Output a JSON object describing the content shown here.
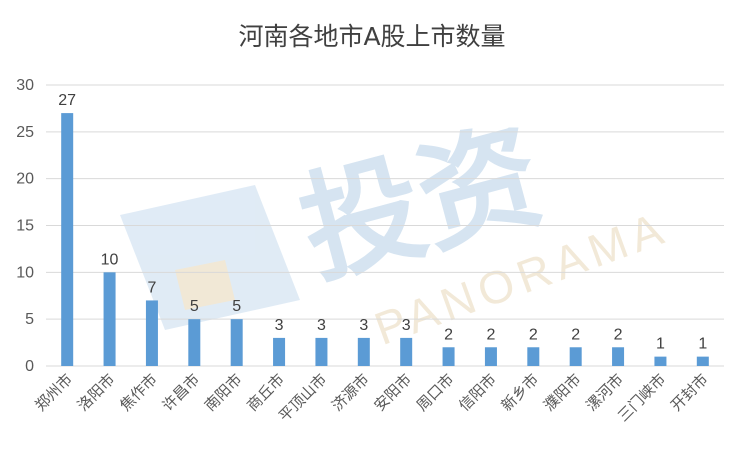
{
  "chart_data": {
    "type": "bar",
    "title": "河南各地市A股上市数量",
    "categories": [
      "郑州市",
      "洛阳市",
      "焦作市",
      "许昌市",
      "南阳市",
      "商丘市",
      "平顶山市",
      "济源市",
      "安阳市",
      "周口市",
      "信阳市",
      "新乡市",
      "濮阳市",
      "漯河市",
      "三门峡市",
      "开封市"
    ],
    "values": [
      27,
      10,
      7,
      5,
      5,
      3,
      3,
      3,
      3,
      2,
      2,
      2,
      2,
      2,
      1,
      1
    ],
    "data_labels": [
      "27",
      "10",
      "7",
      "5",
      "5",
      "3",
      "3",
      "3",
      "3",
      "2",
      "2",
      "2",
      "2",
      "2",
      "1",
      "1"
    ],
    "ylim": [
      0,
      30
    ],
    "yticks": [
      0,
      5,
      10,
      15,
      20,
      25,
      30
    ],
    "ytick_labels": [
      "0",
      "5",
      "10",
      "15",
      "20",
      "25",
      "30"
    ],
    "grid": true,
    "bar_color": "#5b9bd5",
    "grid_color": "#d9d9d9"
  },
  "watermark": {
    "text": "PANORAMA",
    "cn": "投资"
  }
}
